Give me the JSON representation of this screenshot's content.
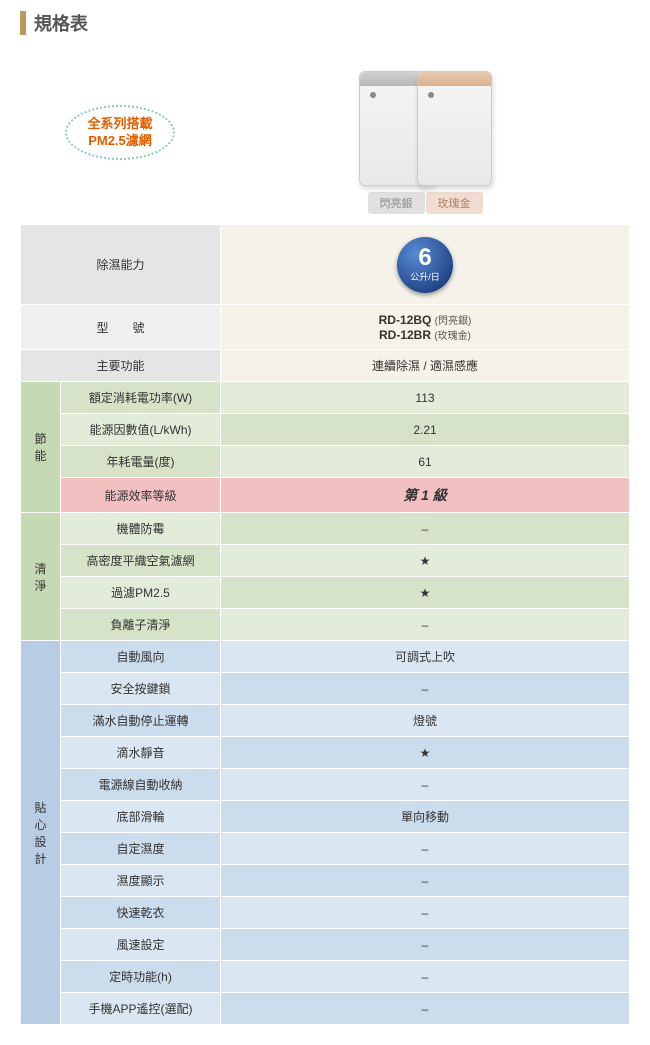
{
  "title": "規格表",
  "pm25_badge": {
    "line1": "全系列搭載",
    "line2": "PM2.5濾網"
  },
  "products": [
    {
      "color_key": "silver",
      "color_label": "閃亮銀"
    },
    {
      "color_key": "gold",
      "color_label": "玫瑰金"
    }
  ],
  "capacity": {
    "label": "除濕能力",
    "number": "6",
    "unit": "公升/日"
  },
  "model_row": {
    "label": "型　　號",
    "model1": "RD-12BQ",
    "model1_note": "(閃亮銀)",
    "model2": "RD-12BR",
    "model2_note": "(玫瑰金)"
  },
  "main_func": {
    "label": "主要功能",
    "value": "連續除濕 / 適濕感應"
  },
  "categories": [
    {
      "name": "節能",
      "cat_bg": "bg-green-dark",
      "rows": [
        {
          "label": "額定消耗電功率(W)",
          "value": "113",
          "bg1": "bg-green1",
          "bg2": "bg-green2"
        },
        {
          "label": "能源因數值(L/kWh)",
          "value": "2.21",
          "bg1": "bg-green2",
          "bg2": "bg-green1"
        },
        {
          "label": "年耗電量(度)",
          "value": "61",
          "bg1": "bg-green1",
          "bg2": "bg-green2"
        },
        {
          "label": "能源效率等級",
          "value": "第 1 級",
          "bg1": "bg-pink",
          "bg2": "bg-pink",
          "rank": true
        }
      ]
    },
    {
      "name": "清淨",
      "cat_bg": "bg-green-dark",
      "rows": [
        {
          "label": "機體防霉",
          "value": "–",
          "bg1": "bg-green2",
          "bg2": "bg-green1"
        },
        {
          "label": "高密度平織空氣濾網",
          "value": "★",
          "bg1": "bg-green1",
          "bg2": "bg-green2"
        },
        {
          "label": "過濾PM2.5",
          "value": "★",
          "bg1": "bg-green2",
          "bg2": "bg-green1"
        },
        {
          "label": "負離子清淨",
          "value": "–",
          "bg1": "bg-green1",
          "bg2": "bg-green2"
        }
      ]
    },
    {
      "name": "貼心設計",
      "cat_bg": "bg-blue-dark",
      "rows": [
        {
          "label": "自動風向",
          "value": "可調式上吹",
          "bg1": "bg-blue1",
          "bg2": "bg-blue2"
        },
        {
          "label": "安全按鍵鎖",
          "value": "–",
          "bg1": "bg-blue2",
          "bg2": "bg-blue1"
        },
        {
          "label": "滿水自動停止運轉",
          "value": "燈號",
          "bg1": "bg-blue1",
          "bg2": "bg-blue2"
        },
        {
          "label": "滴水靜音",
          "value": "★",
          "bg1": "bg-blue2",
          "bg2": "bg-blue1"
        },
        {
          "label": "電源線自動收納",
          "value": "–",
          "bg1": "bg-blue1",
          "bg2": "bg-blue2"
        },
        {
          "label": "底部滑輪",
          "value": "單向移動",
          "bg1": "bg-blue2",
          "bg2": "bg-blue1"
        },
        {
          "label": "自定濕度",
          "value": "–",
          "bg1": "bg-blue1",
          "bg2": "bg-blue2"
        },
        {
          "label": "濕度顯示",
          "value": "–",
          "bg1": "bg-blue2",
          "bg2": "bg-blue1"
        },
        {
          "label": "快速乾衣",
          "value": "–",
          "bg1": "bg-blue1",
          "bg2": "bg-blue2"
        },
        {
          "label": "風速設定",
          "value": "–",
          "bg1": "bg-blue2",
          "bg2": "bg-blue1"
        },
        {
          "label": "定時功能(h)",
          "value": "–",
          "bg1": "bg-blue1",
          "bg2": "bg-blue2"
        },
        {
          "label": "手機APP遙控(選配)",
          "value": "–",
          "bg1": "bg-blue2",
          "bg2": "bg-blue1"
        }
      ]
    }
  ]
}
